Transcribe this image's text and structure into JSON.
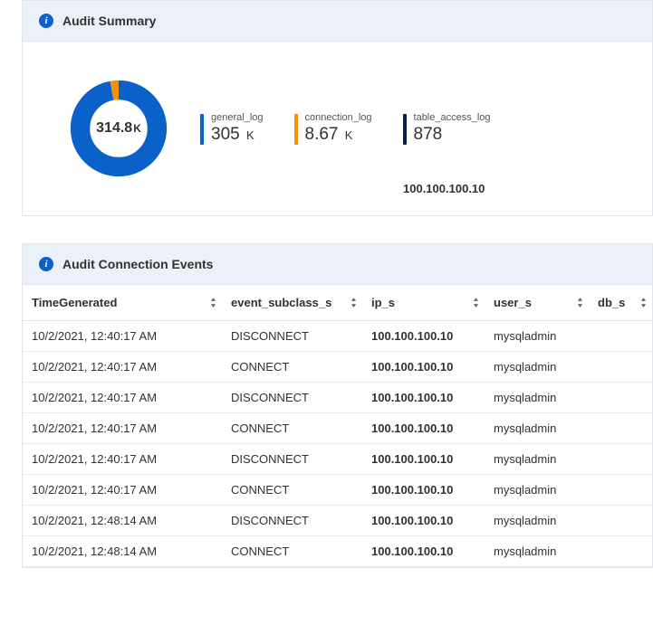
{
  "colors": {
    "panel_header_bg": "#ecf1f9",
    "border": "#e1e4ea",
    "info_icon": "#0b61ca",
    "donut_main": "#0b61ca",
    "donut_slice": "#f2910c",
    "stat1_bar": "#0b61ca",
    "stat2_bar": "#f2910c",
    "stat3_bar": "#002050"
  },
  "summary": {
    "title": "Audit Summary",
    "donut": {
      "total_value": "314.8",
      "total_unit": "K",
      "main_pct": 97,
      "slice_pct": 3
    },
    "stats": [
      {
        "label": "general_log",
        "value": "305",
        "unit": "K",
        "bar_color": "#0b61ca"
      },
      {
        "label": "connection_log",
        "value": "8.67",
        "unit": "K",
        "bar_color": "#f2910c"
      },
      {
        "label": "table_access_log",
        "value": "878",
        "unit": "",
        "bar_color": "#002050"
      }
    ],
    "ip_line": "100.100.100.10"
  },
  "events": {
    "title": "Audit Connection Events",
    "columns": [
      "TimeGenerated",
      "event_subclass_s",
      "ip_s",
      "user_s",
      "db_s"
    ],
    "rows": [
      [
        "10/2/2021, 12:40:17 AM",
        "DISCONNECT",
        "100.100.100.10",
        "mysqladmin",
        ""
      ],
      [
        "10/2/2021, 12:40:17 AM",
        "CONNECT",
        "100.100.100.10",
        "mysqladmin",
        ""
      ],
      [
        "10/2/2021, 12:40:17 AM",
        "DISCONNECT",
        "100.100.100.10",
        "mysqladmin",
        ""
      ],
      [
        "10/2/2021, 12:40:17 AM",
        "CONNECT",
        "100.100.100.10",
        "mysqladmin",
        ""
      ],
      [
        "10/2/2021, 12:40:17 AM",
        "DISCONNECT",
        "100.100.100.10",
        "mysqladmin",
        ""
      ],
      [
        "10/2/2021, 12:40:17 AM",
        "CONNECT",
        "100.100.100.10",
        "mysqladmin",
        ""
      ],
      [
        "10/2/2021, 12:48:14 AM",
        "DISCONNECT",
        "100.100.100.10",
        "mysqladmin",
        ""
      ],
      [
        "10/2/2021, 12:48:14 AM",
        "CONNECT",
        "100.100.100.10",
        "mysqladmin",
        ""
      ]
    ]
  }
}
